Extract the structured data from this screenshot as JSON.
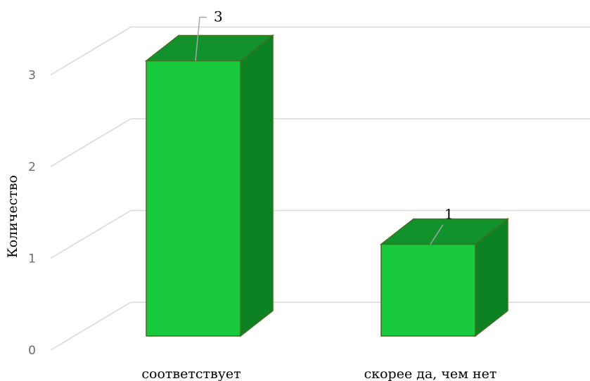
{
  "chart_data": {
    "type": "bar",
    "categories": [
      "соответствует",
      "скорее да, чем нет"
    ],
    "values": [
      3,
      1
    ],
    "title": "",
    "xlabel": "",
    "ylabel": "Количество",
    "ylim": [
      0,
      3
    ],
    "yticks": [
      0,
      1,
      2,
      3
    ],
    "data_labels": [
      "3",
      "1"
    ],
    "grid": true,
    "style": "3d-column",
    "colors": {
      "front": "#17c93b",
      "top": "#12922c",
      "side": "#0c8225",
      "edge": "#3f6f1f"
    }
  }
}
